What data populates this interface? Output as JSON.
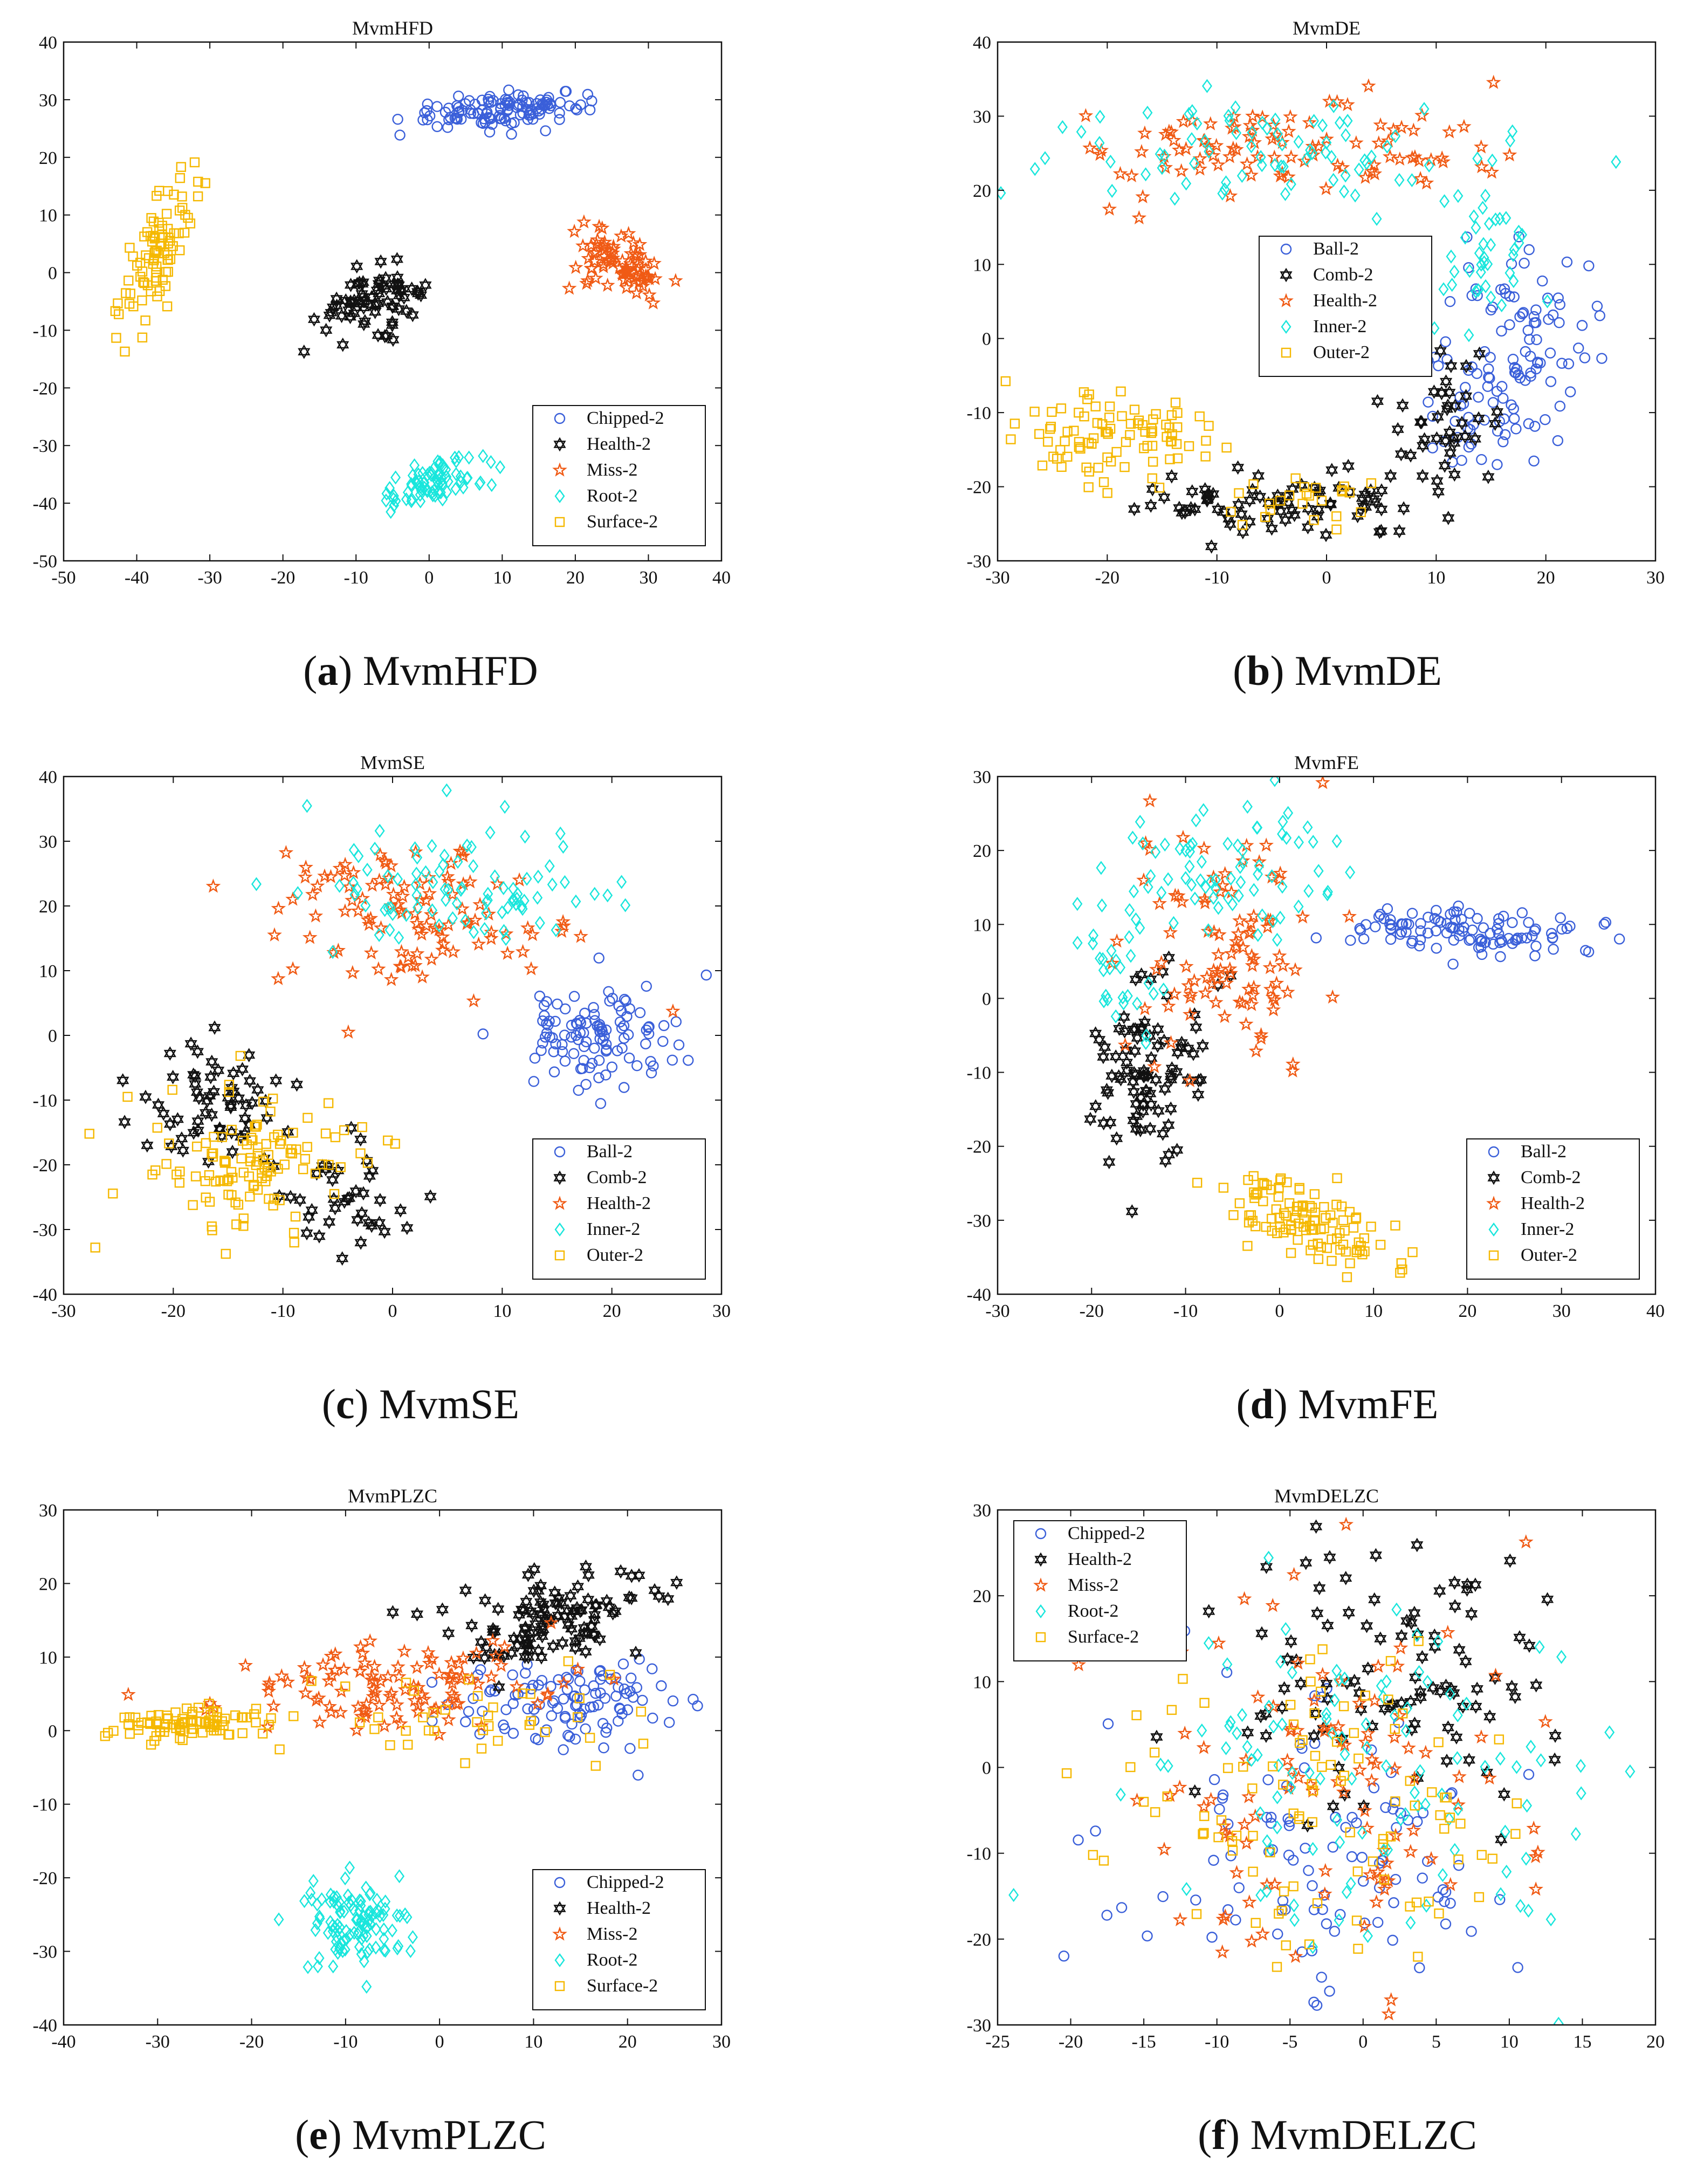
{
  "figure": {
    "colors": {
      "blue": "#3a5fd9",
      "black": "#111111",
      "orange": "#f05a14",
      "cyan": "#19e6dc",
      "yellow": "#f5b800"
    }
  },
  "chart_data": [
    {
      "id": "a",
      "type": "scatter",
      "title": "MvmHFD",
      "caption_letter": "a",
      "caption_text": "MvmHFD",
      "xlim": [
        -50,
        40
      ],
      "ylim": [
        -50,
        40
      ],
      "xticks": [
        -50,
        -40,
        -30,
        -20,
        -10,
        0,
        10,
        20,
        30,
        40
      ],
      "yticks": [
        -50,
        -40,
        -30,
        -20,
        -10,
        0,
        10,
        20,
        30,
        40
      ],
      "legend_position": "bottom-right",
      "series": [
        {
          "name": "Chipped-2",
          "marker": "circle",
          "color": "#3a5fd9",
          "clusters": [
            {
              "cx": 8,
              "cy": 28,
              "sx": 6,
              "sy": 1.5,
              "n": 90,
              "sh": 0
            },
            {
              "cx": 17,
              "cy": 29,
              "sx": 3,
              "sy": 1.2,
              "n": 30,
              "sh": 0
            }
          ]
        },
        {
          "name": "Health-2",
          "marker": "star6",
          "color": "#111111",
          "clusters": [
            {
              "cx": -8,
              "cy": -5,
              "sx": 3.5,
              "sy": 2.5,
              "n": 70,
              "sh": 0.4
            }
          ]
        },
        {
          "name": "Miss-2",
          "marker": "star5",
          "color": "#f05a14",
          "clusters": [
            {
              "cx": 26,
              "cy": 1,
              "sx": 3.5,
              "sy": 2.5,
              "n": 80,
              "sh": -0.5
            }
          ]
        },
        {
          "name": "Root-2",
          "marker": "diamond",
          "color": "#19e6dc",
          "clusters": [
            {
              "cx": 1,
              "cy": -36,
              "sx": 4,
              "sy": 1.8,
              "n": 80,
              "sh": 0.35
            }
          ]
        },
        {
          "name": "Surface-2",
          "marker": "square",
          "color": "#f5b800",
          "clusters": [
            {
              "cx": -37,
              "cy": 4,
              "sx": 2.5,
              "sy": 4.5,
              "n": 90,
              "sh": 1.6
            }
          ]
        }
      ]
    },
    {
      "id": "b",
      "type": "scatter",
      "title": "MvmDE",
      "caption_letter": "b",
      "caption_text": "MvmDE",
      "xlim": [
        -30,
        30
      ],
      "ylim": [
        -30,
        40
      ],
      "xticks": [
        -30,
        -20,
        -10,
        0,
        10,
        20,
        30
      ],
      "yticks": [
        -30,
        -20,
        -10,
        0,
        10,
        20,
        30,
        40
      ],
      "legend_position": "center",
      "series": [
        {
          "name": "Ball-2",
          "marker": "circle",
          "color": "#3a5fd9",
          "clusters": [
            {
              "cx": 18,
              "cy": 0,
              "sx": 3,
              "sy": 6,
              "n": 90,
              "sh": 0
            },
            {
              "cx": 13,
              "cy": -12,
              "sx": 3,
              "sy": 3,
              "n": 30,
              "sh": 0
            }
          ]
        },
        {
          "name": "Comb-2",
          "marker": "star6",
          "color": "#111111",
          "clusters": [
            {
              "cx": 0,
              "cy": -22,
              "sx": 6,
              "sy": 2.5,
              "n": 60,
              "sh": 0
            },
            {
              "cx": 11,
              "cy": -10,
              "sx": 2.5,
              "sy": 4,
              "n": 35,
              "sh": 0
            },
            {
              "cx": -13,
              "cy": -22,
              "sx": 3,
              "sy": 2,
              "n": 20,
              "sh": 0
            }
          ]
        },
        {
          "name": "Health-2",
          "marker": "star5",
          "color": "#f05a14",
          "clusters": [
            {
              "cx": -5,
              "cy": 26,
              "sx": 10,
              "sy": 3.5,
              "n": 100,
              "sh": 0
            }
          ]
        },
        {
          "name": "Inner-2",
          "marker": "diamond",
          "color": "#19e6dc",
          "clusters": [
            {
              "cx": -5,
              "cy": 25,
              "sx": 10,
              "sy": 3.5,
              "n": 80,
              "sh": 0
            },
            {
              "cx": 15,
              "cy": 12,
              "sx": 2.5,
              "sy": 5,
              "n": 40,
              "sh": 0
            }
          ]
        },
        {
          "name": "Outer-2",
          "marker": "square",
          "color": "#f5b800",
          "clusters": [
            {
              "cx": -19,
              "cy": -13,
              "sx": 5,
              "sy": 3.5,
              "n": 90,
              "sh": 0
            },
            {
              "cx": -2,
              "cy": -22,
              "sx": 3,
              "sy": 2,
              "n": 25,
              "sh": 0
            }
          ]
        }
      ]
    },
    {
      "id": "c",
      "type": "scatter",
      "title": "MvmSE",
      "caption_letter": "c",
      "caption_text": "MvmSE",
      "xlim": [
        -30,
        30
      ],
      "ylim": [
        -40,
        40
      ],
      "xticks": [
        -30,
        -20,
        -10,
        0,
        10,
        20,
        30
      ],
      "yticks": [
        -40,
        -30,
        -20,
        -10,
        0,
        10,
        20,
        30,
        40
      ],
      "legend_position": "bottom-right",
      "series": [
        {
          "name": "Ball-2",
          "marker": "circle",
          "color": "#3a5fd9",
          "clusters": [
            {
              "cx": 19,
              "cy": 0,
              "sx": 4,
              "sy": 4,
              "n": 110,
              "sh": 0
            }
          ]
        },
        {
          "name": "Comb-2",
          "marker": "star6",
          "color": "#111111",
          "clusters": [
            {
              "cx": -17,
              "cy": -10,
              "sx": 3.5,
              "sy": 5,
              "n": 60,
              "sh": 0
            },
            {
              "cx": -5,
              "cy": -25,
              "sx": 3,
              "sy": 4,
              "n": 40,
              "sh": 0
            }
          ]
        },
        {
          "name": "Health-2",
          "marker": "star5",
          "color": "#f05a14",
          "clusters": [
            {
              "cx": 3,
              "cy": 18,
              "sx": 7,
              "sy": 6,
              "n": 110,
              "sh": 0
            }
          ]
        },
        {
          "name": "Inner-2",
          "marker": "diamond",
          "color": "#19e6dc",
          "clusters": [
            {
              "cx": 6,
              "cy": 22,
              "sx": 7,
              "sy": 5,
              "n": 90,
              "sh": 0
            }
          ]
        },
        {
          "name": "Outer-2",
          "marker": "square",
          "color": "#f5b800",
          "clusters": [
            {
              "cx": -13,
              "cy": -20,
              "sx": 5,
              "sy": 6,
              "n": 120,
              "sh": 0
            }
          ]
        }
      ]
    },
    {
      "id": "d",
      "type": "scatter",
      "title": "MvmFE",
      "caption_letter": "d",
      "caption_text": "MvmFE",
      "xlim": [
        -30,
        40
      ],
      "ylim": [
        -40,
        30
      ],
      "xticks": [
        -30,
        -20,
        -10,
        0,
        10,
        20,
        30,
        40
      ],
      "yticks": [
        -40,
        -30,
        -20,
        -10,
        0,
        10,
        20,
        30
      ],
      "legend_position": "bottom-right",
      "series": [
        {
          "name": "Ball-2",
          "marker": "circle",
          "color": "#3a5fd9",
          "clusters": [
            {
              "cx": 20,
              "cy": 9,
              "sx": 6,
              "sy": 1.8,
              "n": 110,
              "sh": 0
            }
          ]
        },
        {
          "name": "Comb-2",
          "marker": "star6",
          "color": "#111111",
          "clusters": [
            {
              "cx": -14,
              "cy": -10,
              "sx": 3,
              "sy": 7,
              "n": 90,
              "sh": 0
            }
          ]
        },
        {
          "name": "Health-2",
          "marker": "star5",
          "color": "#f05a14",
          "clusters": [
            {
              "cx": -6,
              "cy": 7,
              "sx": 5,
              "sy": 8,
              "n": 100,
              "sh": 0
            }
          ]
        },
        {
          "name": "Inner-2",
          "marker": "diamond",
          "color": "#19e6dc",
          "clusters": [
            {
              "cx": -6,
              "cy": 18,
              "sx": 6,
              "sy": 4,
              "n": 70,
              "sh": 0
            },
            {
              "cx": -17,
              "cy": 5,
              "sx": 2,
              "sy": 5,
              "n": 30,
              "sh": 0
            }
          ]
        },
        {
          "name": "Outer-2",
          "marker": "square",
          "color": "#f5b800",
          "clusters": [
            {
              "cx": 3,
              "cy": -30,
              "sx": 5,
              "sy": 2.5,
              "n": 110,
              "sh": -0.5
            }
          ]
        }
      ]
    },
    {
      "id": "e",
      "type": "scatter",
      "title": "MvmPLZC",
      "caption_letter": "e",
      "caption_text": "MvmPLZC",
      "xlim": [
        -40,
        30
      ],
      "ylim": [
        -40,
        30
      ],
      "xticks": [
        -40,
        -30,
        -20,
        -10,
        0,
        10,
        20,
        30
      ],
      "yticks": [
        -40,
        -30,
        -20,
        -10,
        0,
        10,
        20,
        30
      ],
      "legend_position": "bottom-right",
      "series": [
        {
          "name": "Chipped-2",
          "marker": "circle",
          "color": "#3a5fd9",
          "clusters": [
            {
              "cx": 14,
              "cy": 4,
              "sx": 6,
              "sy": 3,
              "n": 110,
              "sh": 0
            }
          ]
        },
        {
          "name": "Health-2",
          "marker": "star6",
          "color": "#111111",
          "clusters": [
            {
              "cx": 12,
              "cy": 15,
              "sx": 5,
              "sy": 3.5,
              "n": 110,
              "sh": 0
            }
          ]
        },
        {
          "name": "Miss-2",
          "marker": "star5",
          "color": "#f05a14",
          "clusters": [
            {
              "cx": -5,
              "cy": 6,
              "sx": 8,
              "sy": 3,
              "n": 110,
              "sh": 0
            }
          ]
        },
        {
          "name": "Root-2",
          "marker": "diamond",
          "color": "#19e6dc",
          "clusters": [
            {
              "cx": -9,
              "cy": -26,
              "sx": 3,
              "sy": 3,
              "n": 110,
              "sh": 0
            }
          ]
        },
        {
          "name": "Surface-2",
          "marker": "square",
          "color": "#f5b800",
          "clusters": [
            {
              "cx": -27,
              "cy": 1,
              "sx": 4,
              "sy": 1.2,
              "n": 90,
              "sh": 0
            },
            {
              "cx": 5,
              "cy": 2,
              "sx": 10,
              "sy": 3,
              "n": 40,
              "sh": 0
            }
          ]
        }
      ]
    },
    {
      "id": "f",
      "type": "scatter",
      "title": "MvmDELZC",
      "caption_letter": "f",
      "caption_text": "MvmDELZC",
      "xlim": [
        -25,
        20
      ],
      "ylim": [
        -30,
        30
      ],
      "xticks": [
        -25,
        -20,
        -15,
        -10,
        -5,
        0,
        5,
        10,
        15,
        20
      ],
      "yticks": [
        -30,
        -20,
        -10,
        0,
        10,
        20,
        30
      ],
      "legend_position": "top-left",
      "series": [
        {
          "name": "Chipped-2",
          "marker": "circle",
          "color": "#3a5fd9",
          "clusters": [
            {
              "cx": -3,
              "cy": -10,
              "sx": 7,
              "sy": 9,
              "n": 110,
              "sh": 0
            }
          ]
        },
        {
          "name": "Health-2",
          "marker": "star6",
          "color": "#111111",
          "clusters": [
            {
              "cx": 3,
              "cy": 10,
              "sx": 6,
              "sy": 8,
              "n": 100,
              "sh": 0
            }
          ]
        },
        {
          "name": "Miss-2",
          "marker": "star5",
          "color": "#f05a14",
          "clusters": [
            {
              "cx": -2,
              "cy": -3,
              "sx": 7,
              "sy": 11,
              "n": 110,
              "sh": 0
            }
          ]
        },
        {
          "name": "Root-2",
          "marker": "diamond",
          "color": "#19e6dc",
          "clusters": [
            {
              "cx": 0,
              "cy": 0,
              "sx": 8,
              "sy": 11,
              "n": 110,
              "sh": 0
            }
          ]
        },
        {
          "name": "Surface-2",
          "marker": "square",
          "color": "#f5b800",
          "clusters": [
            {
              "cx": -2,
              "cy": -5,
              "sx": 7,
              "sy": 10,
              "n": 100,
              "sh": 0
            }
          ]
        }
      ]
    }
  ]
}
